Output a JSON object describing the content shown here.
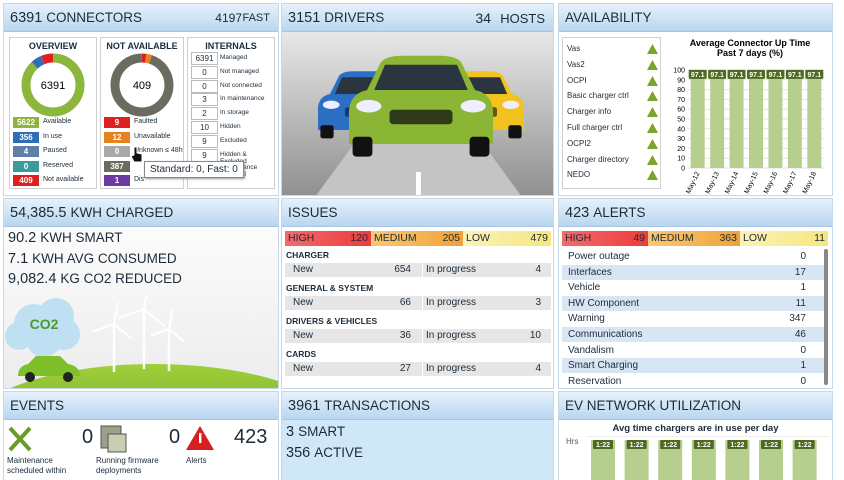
{
  "connectors": {
    "count": "6391",
    "title": "CONNECTORS",
    "fast_count": "4197",
    "fast_label": "FAST",
    "overview": {
      "title": "OVERVIEW",
      "total": "6391",
      "legend": [
        {
          "value": 5622,
          "label": "Available",
          "color": "#8cb63c"
        },
        {
          "value": 356,
          "label": "In use",
          "color": "#2f6db5"
        },
        {
          "value": 4,
          "label": "Paused",
          "color": "#5f80a6"
        },
        {
          "value": 0,
          "label": "Reserved",
          "color": "#3a9aa0"
        },
        {
          "value": 409,
          "label": "Not available",
          "color": "#e02020"
        }
      ]
    },
    "not_available": {
      "title": "NOT AVAILABLE",
      "total": "409",
      "legend": [
        {
          "value": 9,
          "label": "Faulted",
          "color": "#e02020"
        },
        {
          "value": 12,
          "label": "Unavailable",
          "color": "#e8821e"
        },
        {
          "value": 0,
          "label": "Unknown ≤ 48h",
          "color": "#a8a8a8"
        },
        {
          "value": 387,
          "color": "#6b6b60"
        },
        {
          "value": 1,
          "label": "Dis",
          "color": "#6a3aa0"
        }
      ]
    },
    "internals": {
      "title": "INTERNALS",
      "rows": [
        {
          "value": 6391,
          "label": "Managed"
        },
        {
          "value": 0,
          "label": "Not managed"
        },
        {
          "value": 0,
          "label": "Not connected"
        },
        {
          "value": 3,
          "label": "In maintenance"
        },
        {
          "value": 2,
          "label": "In storage"
        },
        {
          "value": 10,
          "label": "Hidden"
        },
        {
          "value": 9,
          "label": "Excluded"
        },
        {
          "value": 9,
          "label": "Hidden & Excluded"
        },
        {
          "label": "Maintenance excluded"
        }
      ]
    },
    "tooltip": "Standard: 0, Fast: 0"
  },
  "drivers": {
    "count": "3151",
    "title": "DRIVERS",
    "hosts_count": "34",
    "hosts_label": "HOSTS"
  },
  "availability": {
    "title": "AVAILABILITY",
    "services": [
      "Vas",
      "Vas2",
      "OCPI",
      "Basic charger ctrl",
      "Charger info",
      "Full charger ctrl",
      "OCPI2",
      "Charger directory",
      "NEDO"
    ],
    "chart": {
      "type": "bar",
      "title": "Average Connector Up Time",
      "subtitle": "Past 7 days (%)",
      "categories": [
        "May-12",
        "May-13",
        "May-14",
        "May-15",
        "May-16",
        "May-17",
        "May-18"
      ],
      "values": [
        97.1,
        97.1,
        97.1,
        97.1,
        97.1,
        97.1,
        97.1
      ],
      "color": "#b7cf8e",
      "label_color": "#4d6a1f",
      "ylim": [
        0,
        100
      ],
      "yticks": [
        0,
        10,
        20,
        30,
        40,
        50,
        60,
        70,
        80,
        90,
        100
      ],
      "grid": true
    }
  },
  "energy": {
    "charged_value": "54,385.5",
    "charged_label": "KWH CHARGED",
    "lines": [
      {
        "value": "90.2",
        "label": "KWH SMART"
      },
      {
        "value": "7.1",
        "label": "KWH AVG CONSUMED"
      },
      {
        "value": "9,082.4",
        "label": "KG CO2 REDUCED"
      }
    ],
    "cloud": "CO2"
  },
  "issues": {
    "title": "ISSUES",
    "priorities": [
      {
        "label": "HIGH",
        "value": "120"
      },
      {
        "label": "MEDIUM",
        "value": "205"
      },
      {
        "label": "LOW",
        "value": "479"
      }
    ],
    "new_label": "New",
    "progress_label": "In progress",
    "sections": [
      {
        "title": "CHARGER",
        "new": "654",
        "in_progress": "4"
      },
      {
        "title": "GENERAL & SYSTEM",
        "new": "66",
        "in_progress": "3"
      },
      {
        "title": "DRIVERS & VEHICLES",
        "new": "36",
        "in_progress": "10"
      },
      {
        "title": "CARDS",
        "new": "27",
        "in_progress": "4"
      }
    ]
  },
  "alerts": {
    "count": "423",
    "title": "ALERTS",
    "priorities": [
      {
        "label": "HIGH",
        "value": "49"
      },
      {
        "label": "MEDIUM",
        "value": "363"
      },
      {
        "label": "LOW",
        "value": "11"
      }
    ],
    "rows": [
      {
        "label": "Power outage",
        "value": "0"
      },
      {
        "label": "Interfaces",
        "value": "17"
      },
      {
        "label": "Vehicle",
        "value": "1"
      },
      {
        "label": "HW Component",
        "value": "11"
      },
      {
        "label": "Warning",
        "value": "347"
      },
      {
        "label": "Communications",
        "value": "46"
      },
      {
        "label": "Vandalism",
        "value": "0"
      },
      {
        "label": "Smart Charging",
        "value": "1"
      },
      {
        "label": "Reservation",
        "value": "0"
      }
    ]
  },
  "events": {
    "title": "EVENTS",
    "items": [
      {
        "label": "Maintenance scheduled within",
        "value": "0"
      },
      {
        "label": "Running firmware deployments",
        "value": "0"
      },
      {
        "label": "Alerts",
        "value": "423"
      }
    ]
  },
  "transactions": {
    "count": "3961",
    "title": "TRANSACTIONS",
    "lines": [
      {
        "value": "3",
        "label": "SMART"
      },
      {
        "value": "356",
        "label": "ACTIVE"
      }
    ]
  },
  "ev_network": {
    "title": "EV NETWORK UTILIZATION",
    "chart": {
      "type": "bar",
      "title": "Avg time chargers are in use per day",
      "y_label": "Hrs",
      "values": [
        1.37,
        1.37,
        1.37,
        1.37,
        1.37,
        1.37,
        1.37
      ],
      "value_labels": [
        "1:22",
        "1:22",
        "1:22",
        "1:22",
        "1:22",
        "1:22",
        "1:22"
      ],
      "color": "#b7cf8e",
      "label_color": "#4d6a1f"
    }
  }
}
